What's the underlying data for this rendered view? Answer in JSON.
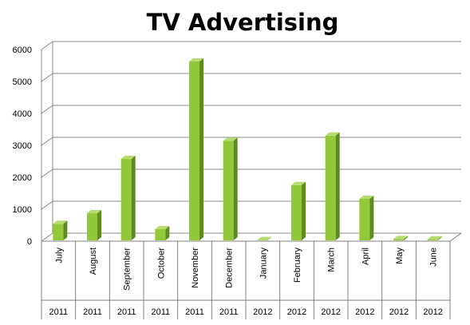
{
  "chart_data": {
    "type": "bar",
    "title": "TV Advertising",
    "xlabel": "",
    "ylabel": "",
    "ylim": [
      0,
      6000
    ],
    "yticks": [
      0,
      1000,
      2000,
      3000,
      4000,
      5000,
      6000
    ],
    "grid": true,
    "legend": "none",
    "categories": [
      "July",
      "August",
      "September",
      "October",
      "November",
      "December",
      "January",
      "February",
      "March",
      "April",
      "May",
      "June"
    ],
    "years": [
      "2011",
      "2011",
      "2011",
      "2011",
      "2011",
      "2011",
      "2012",
      "2012",
      "2012",
      "2012",
      "2012",
      "2012"
    ],
    "values": [
      520,
      850,
      2550,
      350,
      5600,
      3120,
      10,
      1730,
      3280,
      1300,
      40,
      30
    ],
    "colors": {
      "bar_front": "#93C83B",
      "bar_side": "#5F8A1E",
      "bar_top": "#B5DC6E",
      "grid": "#8A8A8A",
      "floor": "#7F7F7F"
    }
  }
}
